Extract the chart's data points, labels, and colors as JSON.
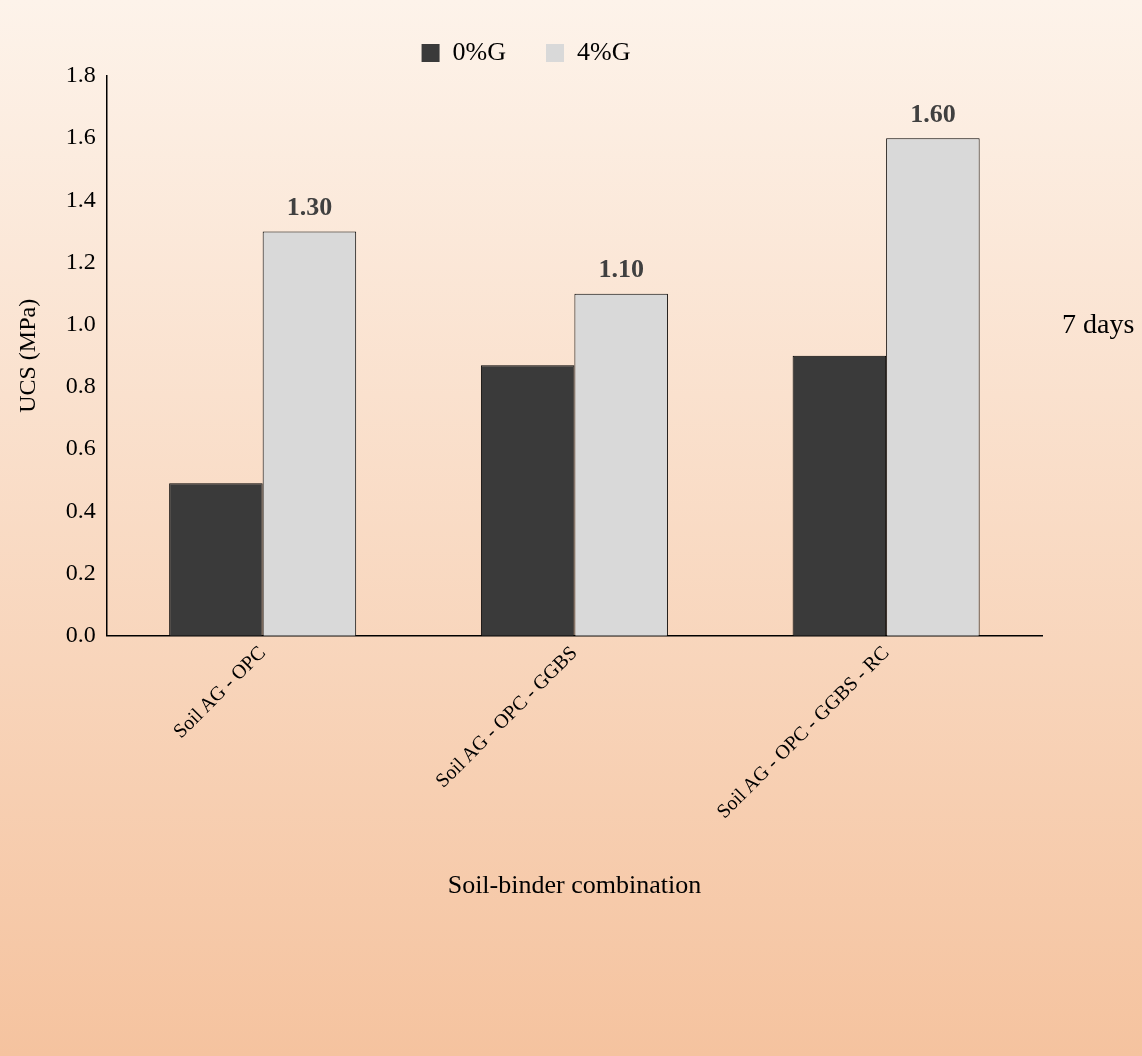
{
  "chart_data": {
    "type": "bar",
    "xlabel": "Soil-binder combination",
    "ylabel": "UCS (MPa)",
    "categories": [
      "Soil AG - OPC",
      "Soil AG - OPC - GGBS",
      "Soil AG - OPC - GGBS - RC"
    ],
    "series": [
      {
        "name": "0%G",
        "color": "#3a3a3a",
        "values": [
          0.49,
          0.87,
          0.9
        ]
      },
      {
        "name": "4%G",
        "color": "#d9d9d9",
        "values": [
          1.3,
          1.1,
          1.6
        ],
        "value_labels": [
          "1.30",
          "1.10",
          "1.60"
        ]
      }
    ],
    "ylim": [
      0,
      1.8
    ],
    "yticks": [
      {
        "value": 0,
        "label": "0.0"
      },
      {
        "value": 0.2,
        "label": "0.2"
      },
      {
        "value": 0.4,
        "label": "0.4"
      },
      {
        "value": 0.6,
        "label": "0.6"
      },
      {
        "value": 0.8,
        "label": "0.8"
      },
      {
        "value": 1,
        "label": "1.0"
      },
      {
        "value": 1.2,
        "label": "1.2"
      },
      {
        "value": 1.4,
        "label": "1.4"
      },
      {
        "value": 1.6,
        "label": "1.6"
      },
      {
        "value": 1.8,
        "label": "1.8"
      }
    ],
    "annotations": [
      "7 days"
    ],
    "grid": false,
    "legend": "top"
  }
}
